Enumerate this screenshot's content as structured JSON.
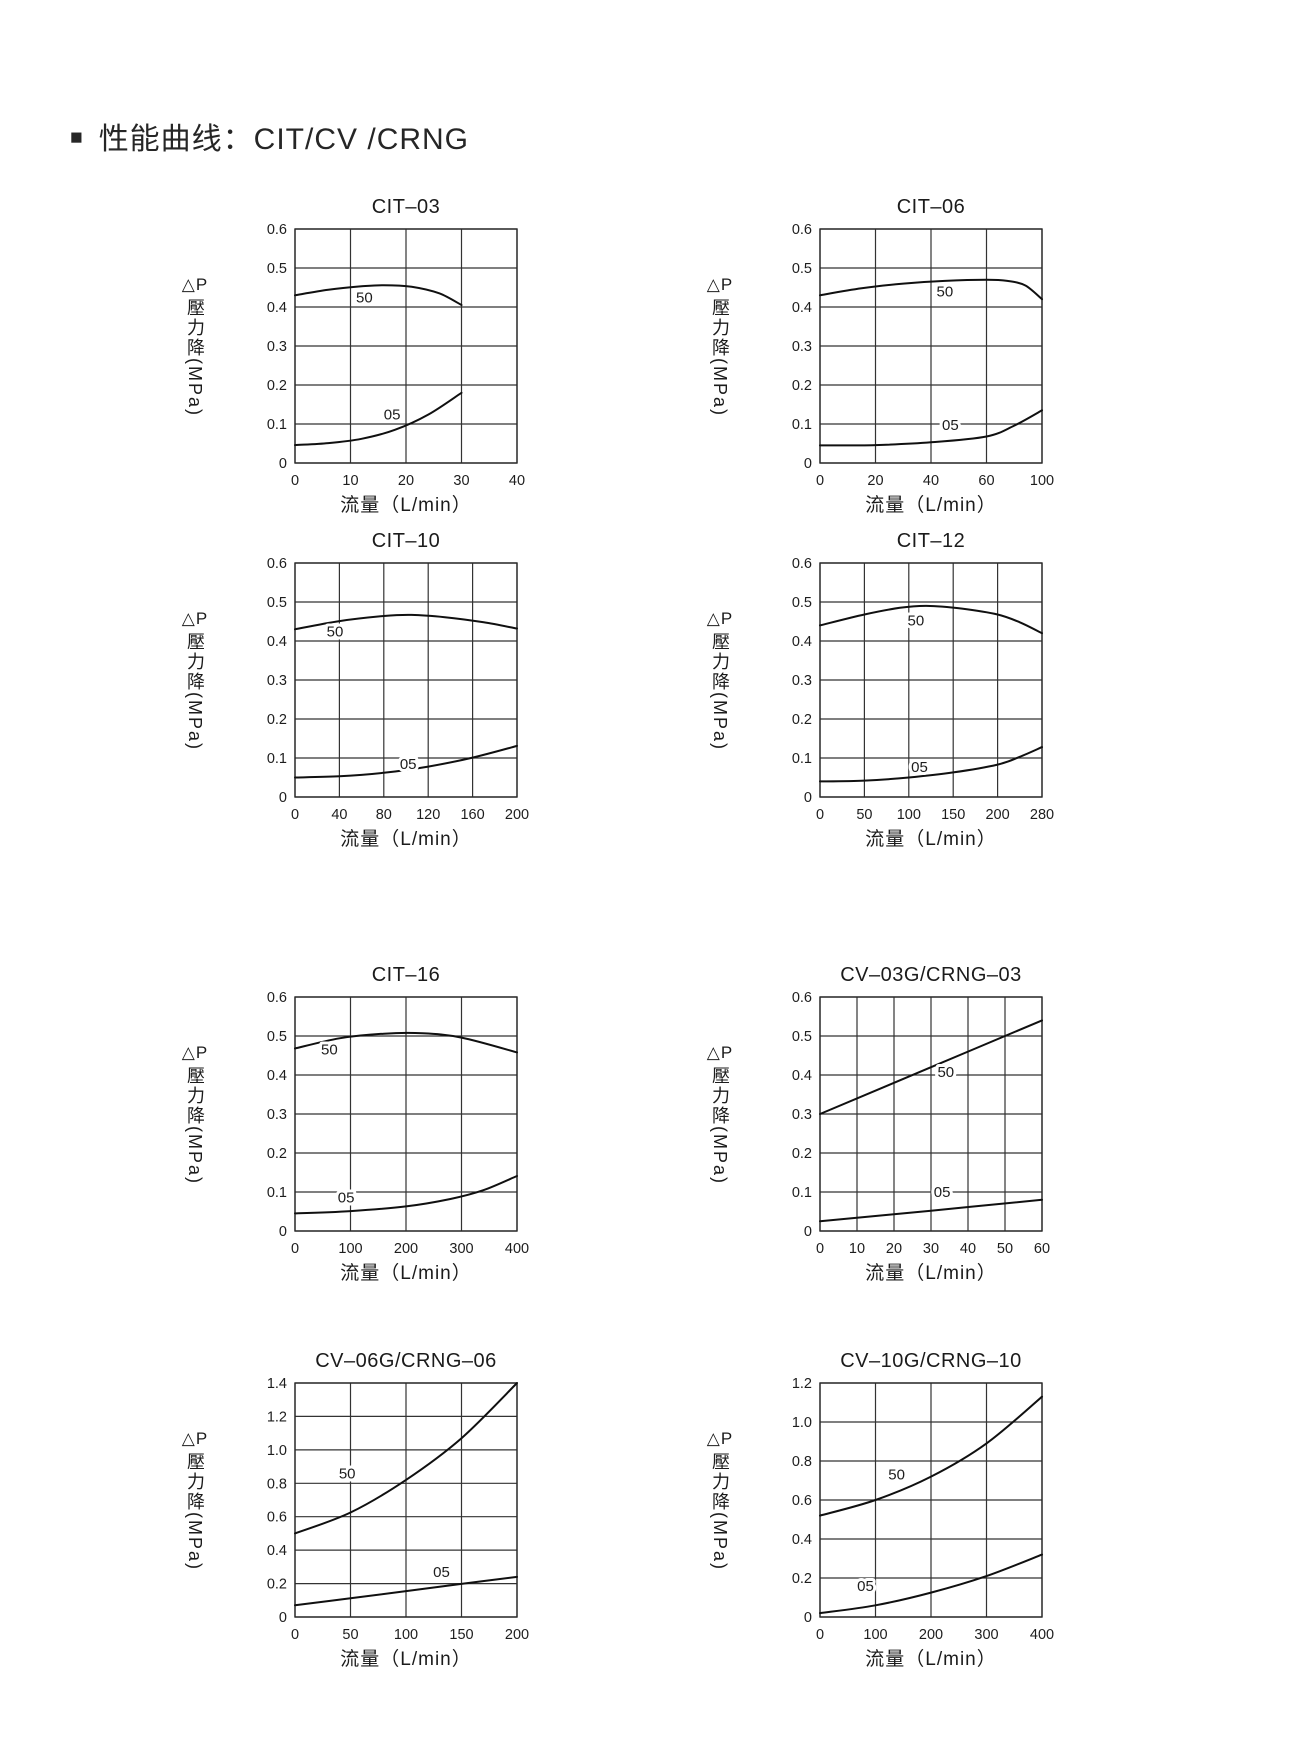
{
  "page": {
    "bullet": "■",
    "title": "性能曲线：CIT/CV /CRNG"
  },
  "axis": {
    "y_label_top": "△P",
    "y_label_side": "壓力降(MPa)",
    "x_label": "流量（L/min）"
  },
  "chart_data": [
    {
      "type": "line",
      "title": "CIT–03",
      "xlabel": "流量（L/min）",
      "ylabel": "△P 壓力降(MPa)",
      "x_tick_labels": [
        "0",
        "10",
        "20",
        "30",
        "40"
      ],
      "x_tick_values": [
        0,
        10,
        20,
        30,
        40
      ],
      "y_ticks": [
        "0",
        "0.1",
        "0.2",
        "0.3",
        "0.4",
        "0.5",
        "0.6"
      ],
      "xlim": [
        0,
        40
      ],
      "ylim": [
        0,
        0.6
      ],
      "grid": true,
      "series": [
        {
          "name": "50",
          "label_pos": {
            "x": 12.5,
            "y": 0.424
          },
          "points": [
            [
              0,
              0.43
            ],
            [
              6,
              0.444
            ],
            [
              12,
              0.453
            ],
            [
              16,
              0.456
            ],
            [
              21,
              0.452
            ],
            [
              26,
              0.435
            ],
            [
              30,
              0.405
            ]
          ]
        },
        {
          "name": "05",
          "label_pos": {
            "x": 17.5,
            "y": 0.124
          },
          "points": [
            [
              0,
              0.046
            ],
            [
              6,
              0.051
            ],
            [
              12,
              0.062
            ],
            [
              18,
              0.085
            ],
            [
              24,
              0.124
            ],
            [
              30,
              0.18
            ]
          ]
        }
      ]
    },
    {
      "type": "line",
      "title": "CIT–06",
      "xlabel": "流量（L/min）",
      "ylabel": "△P 壓力降(MPa)",
      "x_tick_labels": [
        "0",
        "20",
        "40",
        "60",
        "100"
      ],
      "x_tick_values": [
        0,
        20,
        40,
        60,
        100
      ],
      "y_ticks": [
        "0",
        "0.1",
        "0.2",
        "0.3",
        "0.4",
        "0.5",
        "0.6"
      ],
      "xlim": [
        0,
        100
      ],
      "ylim": [
        0,
        0.6
      ],
      "grid": true,
      "series": [
        {
          "name": "50",
          "label_pos": {
            "x": 45,
            "y": 0.44
          },
          "points": [
            [
              0,
              0.43
            ],
            [
              15,
              0.448
            ],
            [
              30,
              0.46
            ],
            [
              45,
              0.467
            ],
            [
              60,
              0.47
            ],
            [
              75,
              0.467
            ],
            [
              88,
              0.455
            ],
            [
              100,
              0.42
            ]
          ]
        },
        {
          "name": "05",
          "label_pos": {
            "x": 47,
            "y": 0.098
          },
          "points": [
            [
              0,
              0.045
            ],
            [
              20,
              0.046
            ],
            [
              40,
              0.053
            ],
            [
              60,
              0.068
            ],
            [
              80,
              0.096
            ],
            [
              100,
              0.135
            ]
          ]
        }
      ]
    },
    {
      "type": "line",
      "title": "CIT–10",
      "xlabel": "流量（L/min）",
      "ylabel": "△P 壓力降(MPa)",
      "x_tick_labels": [
        "0",
        "40",
        "80",
        "120",
        "160",
        "200"
      ],
      "x_tick_values": [
        0,
        40,
        80,
        120,
        160,
        200
      ],
      "y_ticks": [
        "0",
        "0.1",
        "0.2",
        "0.3",
        "0.4",
        "0.5",
        "0.6"
      ],
      "xlim": [
        0,
        200
      ],
      "ylim": [
        0,
        0.6
      ],
      "grid": true,
      "series": [
        {
          "name": "50",
          "label_pos": {
            "x": 36,
            "y": 0.425
          },
          "points": [
            [
              0,
              0.43
            ],
            [
              40,
              0.451
            ],
            [
              80,
              0.464
            ],
            [
              105,
              0.467
            ],
            [
              135,
              0.461
            ],
            [
              170,
              0.448
            ],
            [
              200,
              0.432
            ]
          ]
        },
        {
          "name": "05",
          "label_pos": {
            "x": 102,
            "y": 0.085
          },
          "points": [
            [
              0,
              0.05
            ],
            [
              40,
              0.053
            ],
            [
              80,
              0.062
            ],
            [
              120,
              0.078
            ],
            [
              160,
              0.101
            ],
            [
              200,
              0.131
            ]
          ]
        }
      ]
    },
    {
      "type": "line",
      "title": "CIT–12",
      "xlabel": "流量（L/min）",
      "ylabel": "△P 壓力降(MPa)",
      "x_tick_labels": [
        "0",
        "50",
        "100",
        "150",
        "200",
        "280"
      ],
      "x_tick_values": [
        0,
        50,
        100,
        150,
        200,
        280
      ],
      "y_ticks": [
        "0",
        "0.1",
        "0.2",
        "0.3",
        "0.4",
        "0.5",
        "0.6"
      ],
      "xlim": [
        0,
        280
      ],
      "ylim": [
        0,
        0.6
      ],
      "grid": true,
      "series": [
        {
          "name": "50",
          "label_pos": {
            "x": 108,
            "y": 0.452
          },
          "points": [
            [
              0,
              0.44
            ],
            [
              50,
              0.468
            ],
            [
              90,
              0.485
            ],
            [
              120,
              0.49
            ],
            [
              160,
              0.483
            ],
            [
              200,
              0.468
            ],
            [
              240,
              0.448
            ],
            [
              280,
              0.42
            ]
          ]
        },
        {
          "name": "05",
          "label_pos": {
            "x": 112,
            "y": 0.077
          },
          "points": [
            [
              0,
              0.04
            ],
            [
              50,
              0.042
            ],
            [
              100,
              0.05
            ],
            [
              150,
              0.063
            ],
            [
              200,
              0.083
            ],
            [
              240,
              0.103
            ],
            [
              280,
              0.128
            ]
          ]
        }
      ]
    },
    {
      "type": "line",
      "title": "CIT–16",
      "xlabel": "流量（L/min）",
      "ylabel": "△P 壓力降(MPa)",
      "x_tick_labels": [
        "0",
        "100",
        "200",
        "300",
        "400"
      ],
      "x_tick_values": [
        0,
        100,
        200,
        300,
        400
      ],
      "y_ticks": [
        "0",
        "0.1",
        "0.2",
        "0.3",
        "0.4",
        "0.5",
        "0.6"
      ],
      "xlim": [
        0,
        400
      ],
      "ylim": [
        0,
        0.6
      ],
      "grid": true,
      "series": [
        {
          "name": "50",
          "label_pos": {
            "x": 62,
            "y": 0.466
          },
          "points": [
            [
              0,
              0.468
            ],
            [
              80,
              0.494
            ],
            [
              160,
              0.506
            ],
            [
              230,
              0.507
            ],
            [
              300,
              0.496
            ],
            [
              400,
              0.458
            ]
          ]
        },
        {
          "name": "05",
          "label_pos": {
            "x": 92,
            "y": 0.086
          },
          "points": [
            [
              0,
              0.045
            ],
            [
              100,
              0.051
            ],
            [
              200,
              0.063
            ],
            [
              280,
              0.082
            ],
            [
              340,
              0.105
            ],
            [
              400,
              0.141
            ]
          ]
        }
      ]
    },
    {
      "type": "line",
      "title": "CV–03G/CRNG–03",
      "xlabel": "流量（L/min）",
      "ylabel": "△P 壓力降(MPa)",
      "x_tick_labels": [
        "0",
        "10",
        "20",
        "30",
        "40",
        "50",
        "60"
      ],
      "x_tick_values": [
        0,
        10,
        20,
        30,
        40,
        50,
        60
      ],
      "y_ticks": [
        "0",
        "0.1",
        "0.2",
        "0.3",
        "0.4",
        "0.5",
        "0.6"
      ],
      "xlim": [
        0,
        60
      ],
      "ylim": [
        0,
        0.6
      ],
      "grid": true,
      "series": [
        {
          "name": "50",
          "label_pos": {
            "x": 34,
            "y": 0.408
          },
          "points": [
            [
              0,
              0.3
            ],
            [
              30,
              0.42
            ],
            [
              60,
              0.54
            ]
          ]
        },
        {
          "name": "05",
          "label_pos": {
            "x": 33,
            "y": 0.1
          },
          "points": [
            [
              0,
              0.025
            ],
            [
              30,
              0.052
            ],
            [
              60,
              0.08
            ]
          ]
        }
      ]
    },
    {
      "type": "line",
      "title": "CV–06G/CRNG–06",
      "xlabel": "流量（L/min）",
      "ylabel": "△P 壓力降(MPa)",
      "x_tick_labels": [
        "0",
        "50",
        "100",
        "150",
        "200"
      ],
      "x_tick_values": [
        0,
        50,
        100,
        150,
        200
      ],
      "y_ticks": [
        "0",
        "0.2",
        "0.4",
        "0.6",
        "0.8",
        "1.0",
        "1.2",
        "1.4"
      ],
      "xlim": [
        0,
        200
      ],
      "ylim": [
        0,
        1.4
      ],
      "grid": true,
      "series": [
        {
          "name": "50",
          "label_pos": {
            "x": 47,
            "y": 0.86
          },
          "points": [
            [
              0,
              0.5
            ],
            [
              50,
              0.625
            ],
            [
              100,
              0.82
            ],
            [
              150,
              1.07
            ],
            [
              200,
              1.4
            ]
          ]
        },
        {
          "name": "05",
          "label_pos": {
            "x": 132,
            "y": 0.27
          },
          "points": [
            [
              0,
              0.07
            ],
            [
              50,
              0.112
            ],
            [
              100,
              0.155
            ],
            [
              150,
              0.198
            ],
            [
              200,
              0.24
            ]
          ]
        }
      ]
    },
    {
      "type": "line",
      "title": "CV–10G/CRNG–10",
      "xlabel": "流量（L/min）",
      "ylabel": "△P 壓力降(MPa)",
      "x_tick_labels": [
        "0",
        "100",
        "200",
        "300",
        "400"
      ],
      "x_tick_values": [
        0,
        100,
        200,
        300,
        400
      ],
      "y_ticks": [
        "0",
        "0.2",
        "0.4",
        "0.6",
        "0.8",
        "1.0",
        "1.2"
      ],
      "xlim": [
        0,
        400
      ],
      "ylim": [
        0,
        1.2
      ],
      "grid": true,
      "series": [
        {
          "name": "50",
          "label_pos": {
            "x": 138,
            "y": 0.73
          },
          "points": [
            [
              0,
              0.52
            ],
            [
              100,
              0.6
            ],
            [
              200,
              0.72
            ],
            [
              300,
              0.89
            ],
            [
              400,
              1.13
            ]
          ]
        },
        {
          "name": "05",
          "label_pos": {
            "x": 82,
            "y": 0.16
          },
          "points": [
            [
              0,
              0.02
            ],
            [
              100,
              0.06
            ],
            [
              200,
              0.125
            ],
            [
              300,
              0.21
            ],
            [
              400,
              0.32
            ]
          ]
        }
      ]
    }
  ]
}
